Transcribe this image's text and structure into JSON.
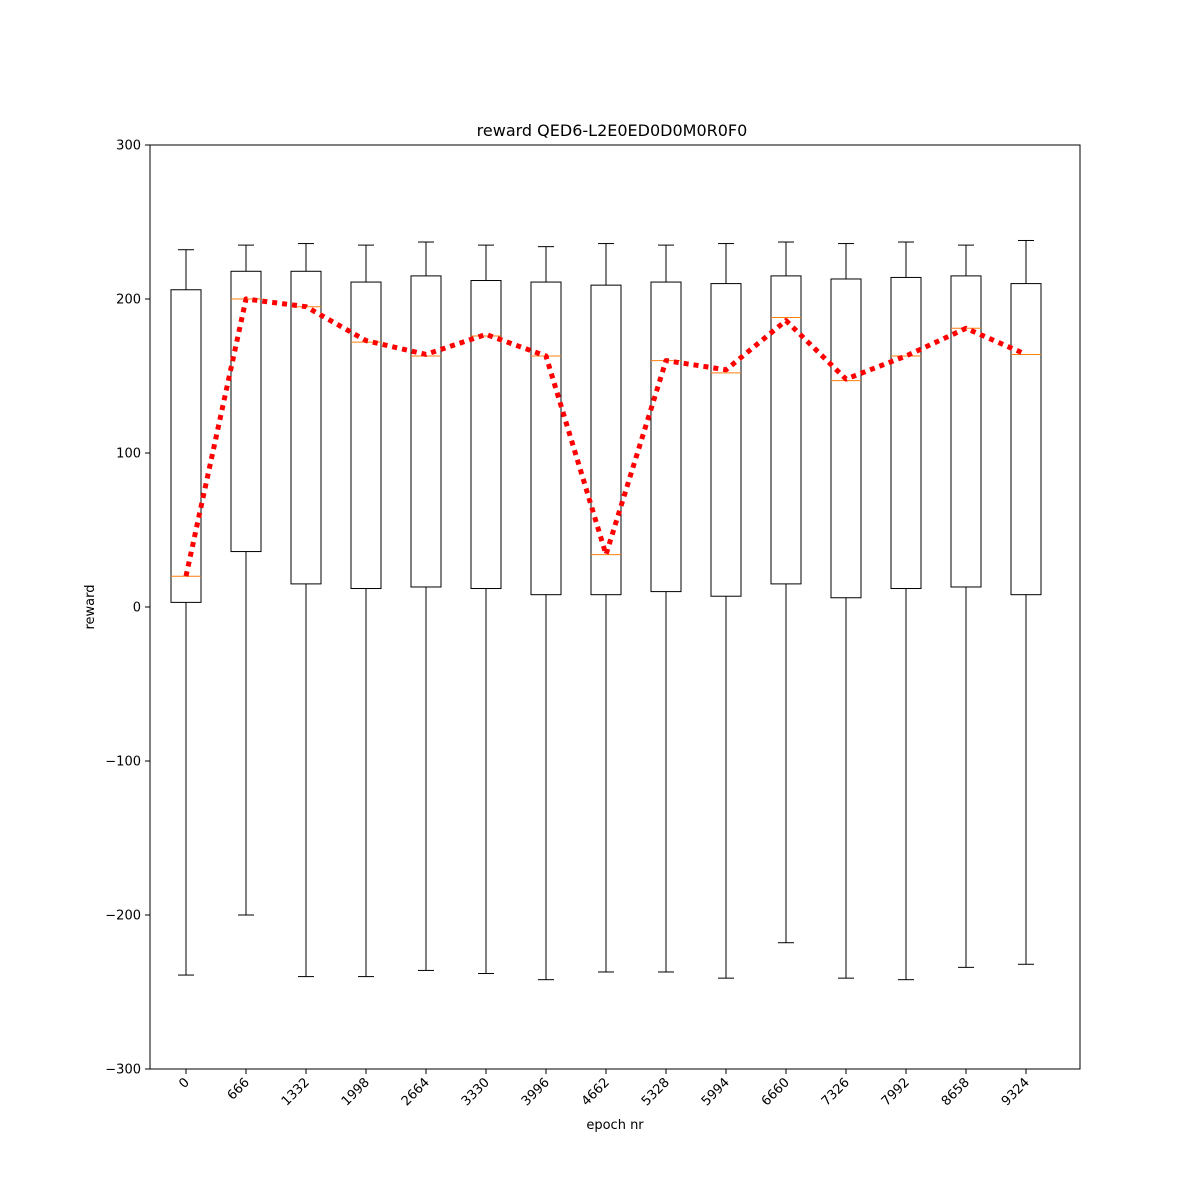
{
  "chart_data": {
    "type": "box",
    "title": "reward QED6-L2E0ED0D0M0R0F0",
    "xlabel": "epoch nr",
    "ylabel": "reward",
    "ylim": [
      -300,
      300
    ],
    "yticks": [
      -300,
      -200,
      -100,
      0,
      100,
      200,
      300
    ],
    "ytick_labels": [
      "−300",
      "−200",
      "−100",
      "0",
      "100",
      "200",
      "300"
    ],
    "xtick_rotation_deg": 45,
    "grid": false,
    "categories": [
      "0",
      "666",
      "1332",
      "1998",
      "2664",
      "3330",
      "3996",
      "4662",
      "5328",
      "5994",
      "6660",
      "7326",
      "7992",
      "8658",
      "9324"
    ],
    "boxes": [
      {
        "whisker_low": -239,
        "q1": 3,
        "median": 20,
        "q3": 206,
        "whisker_high": 232
      },
      {
        "whisker_low": -200,
        "q1": 36,
        "median": 200,
        "q3": 218,
        "whisker_high": 235
      },
      {
        "whisker_low": -240,
        "q1": 15,
        "median": 195,
        "q3": 218,
        "whisker_high": 236
      },
      {
        "whisker_low": -240,
        "q1": 12,
        "median": 172,
        "q3": 211,
        "whisker_high": 235
      },
      {
        "whisker_low": -236,
        "q1": 13,
        "median": 163,
        "q3": 215,
        "whisker_high": 237
      },
      {
        "whisker_low": -238,
        "q1": 12,
        "median": 176,
        "q3": 212,
        "whisker_high": 235
      },
      {
        "whisker_low": -242,
        "q1": 8,
        "median": 163,
        "q3": 211,
        "whisker_high": 234
      },
      {
        "whisker_low": -237,
        "q1": 8,
        "median": 34,
        "q3": 209,
        "whisker_high": 236
      },
      {
        "whisker_low": -237,
        "q1": 10,
        "median": 160,
        "q3": 211,
        "whisker_high": 235
      },
      {
        "whisker_low": -241,
        "q1": 7,
        "median": 152,
        "q3": 210,
        "whisker_high": 236
      },
      {
        "whisker_low": -218,
        "q1": 15,
        "median": 188,
        "q3": 215,
        "whisker_high": 237
      },
      {
        "whisker_low": -241,
        "q1": 6,
        "median": 147,
        "q3": 213,
        "whisker_high": 236
      },
      {
        "whisker_low": -242,
        "q1": 12,
        "median": 163,
        "q3": 214,
        "whisker_high": 237
      },
      {
        "whisker_low": -234,
        "q1": 13,
        "median": 181,
        "q3": 215,
        "whisker_high": 235
      },
      {
        "whisker_low": -232,
        "q1": 8,
        "median": 164,
        "q3": 210,
        "whisker_high": 238
      }
    ],
    "series": [
      {
        "type": "line",
        "style": "dotted",
        "color": "#ff0000",
        "values": [
          20,
          200,
          195,
          173,
          164,
          177,
          163,
          34,
          160,
          154,
          186,
          148,
          163,
          181,
          164
        ]
      }
    ],
    "colors": {
      "box": "#000000",
      "median": "#ff7f0e",
      "trend": "#ff0000"
    }
  }
}
